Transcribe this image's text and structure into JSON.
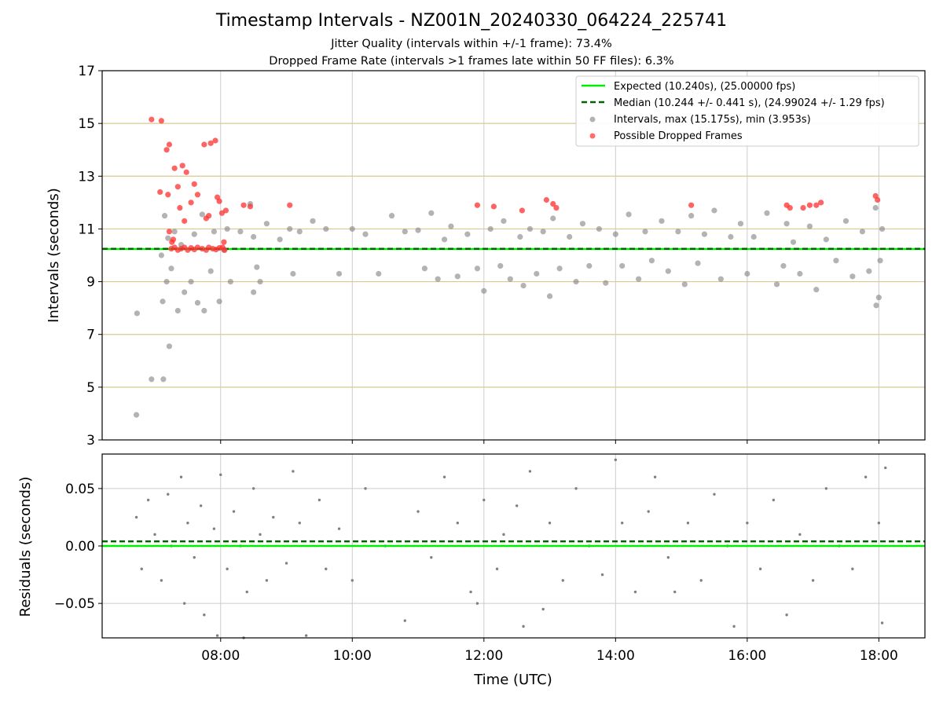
{
  "header": {
    "title": "Timestamp Intervals - NZ001N_20240330_064224_225741",
    "subtitle_1": "Jitter Quality (intervals within +/-1 frame): 73.4%",
    "subtitle_2": "Dropped Frame Rate (intervals >1 frames late within 50 FF files): 6.3%"
  },
  "chart_data": [
    {
      "type": "scatter",
      "name": "intervals",
      "ylabel": "Intervals (seconds)",
      "ylim": [
        3,
        17
      ],
      "yticks": [
        3,
        5,
        7,
        9,
        11,
        13,
        15,
        17
      ],
      "xlim_hours": [
        6.2,
        18.7
      ],
      "xticks": [
        "08:00",
        "10:00",
        "12:00",
        "14:00",
        "16:00",
        "18:00"
      ],
      "grid": "y lines at odd seconds (tan), vertical lines at x ticks (gray)",
      "legend_position": "top-right",
      "expected_line": {
        "y": 10.24,
        "color": "#00ee00",
        "label": "Expected (10.240s), (25.00000 fps)"
      },
      "median_line": {
        "y": 10.244,
        "color": "#006400",
        "style": "dashed",
        "label": "Median (10.244 +/- 0.441 s), (24.99024 +/- 1.29 fps)"
      },
      "series": [
        {
          "name": "Intervals, max (15.175s), min (3.953s)",
          "color": "#808080",
          "points": [
            [
              6.72,
              3.95
            ],
            [
              6.73,
              7.8
            ],
            [
              6.95,
              5.3
            ],
            [
              7.13,
              5.3
            ],
            [
              7.22,
              6.55
            ],
            [
              7.12,
              8.25
            ],
            [
              7.18,
              9.0
            ],
            [
              7.25,
              9.5
            ],
            [
              7.35,
              7.9
            ],
            [
              7.45,
              8.6
            ],
            [
              7.55,
              9.0
            ],
            [
              7.65,
              8.2
            ],
            [
              7.75,
              7.9
            ],
            [
              7.85,
              9.4
            ],
            [
              7.98,
              8.25
            ],
            [
              7.1,
              10.0
            ],
            [
              7.15,
              11.5
            ],
            [
              7.2,
              10.65
            ],
            [
              7.3,
              10.9
            ],
            [
              7.4,
              10.4
            ],
            [
              7.6,
              10.8
            ],
            [
              7.72,
              11.55
            ],
            [
              7.9,
              10.9
            ],
            [
              8.05,
              10.2
            ],
            [
              8.1,
              11.0
            ],
            [
              8.15,
              9.0
            ],
            [
              8.3,
              10.9
            ],
            [
              8.45,
              11.95
            ],
            [
              8.5,
              10.7
            ],
            [
              8.55,
              9.55
            ],
            [
              8.5,
              8.6
            ],
            [
              8.6,
              9.0
            ],
            [
              8.7,
              11.2
            ],
            [
              8.9,
              10.6
            ],
            [
              9.05,
              11.0
            ],
            [
              9.1,
              9.3
            ],
            [
              9.2,
              10.9
            ],
            [
              9.4,
              11.3
            ],
            [
              9.6,
              11.0
            ],
            [
              9.8,
              9.3
            ],
            [
              10.0,
              11.0
            ],
            [
              10.2,
              10.8
            ],
            [
              10.4,
              9.3
            ],
            [
              10.6,
              11.5
            ],
            [
              10.8,
              10.9
            ],
            [
              11.0,
              10.95
            ],
            [
              11.1,
              9.5
            ],
            [
              11.2,
              11.6
            ],
            [
              11.3,
              9.1
            ],
            [
              11.4,
              10.6
            ],
            [
              11.5,
              11.1
            ],
            [
              11.6,
              9.2
            ],
            [
              11.75,
              10.8
            ],
            [
              11.9,
              9.5
            ],
            [
              12.0,
              8.65
            ],
            [
              12.1,
              11.0
            ],
            [
              12.25,
              9.6
            ],
            [
              12.3,
              11.3
            ],
            [
              12.4,
              9.1
            ],
            [
              12.55,
              10.7
            ],
            [
              12.6,
              8.85
            ],
            [
              12.7,
              11.0
            ],
            [
              12.8,
              9.3
            ],
            [
              12.9,
              10.9
            ],
            [
              13.0,
              8.45
            ],
            [
              13.05,
              11.4
            ],
            [
              13.15,
              9.5
            ],
            [
              13.3,
              10.7
            ],
            [
              13.4,
              9.0
            ],
            [
              13.5,
              11.2
            ],
            [
              13.6,
              9.6
            ],
            [
              13.75,
              11.0
            ],
            [
              13.85,
              8.95
            ],
            [
              14.0,
              10.8
            ],
            [
              14.1,
              9.6
            ],
            [
              14.2,
              11.55
            ],
            [
              14.35,
              9.1
            ],
            [
              14.45,
              10.9
            ],
            [
              14.55,
              9.8
            ],
            [
              14.7,
              11.3
            ],
            [
              14.8,
              9.4
            ],
            [
              14.95,
              10.9
            ],
            [
              15.05,
              8.9
            ],
            [
              15.15,
              11.5
            ],
            [
              15.25,
              9.7
            ],
            [
              15.35,
              10.8
            ],
            [
              15.5,
              11.7
            ],
            [
              15.6,
              9.1
            ],
            [
              15.75,
              10.7
            ],
            [
              15.9,
              11.2
            ],
            [
              16.0,
              9.3
            ],
            [
              16.1,
              10.7
            ],
            [
              16.3,
              11.6
            ],
            [
              16.45,
              8.9
            ],
            [
              16.55,
              9.6
            ],
            [
              16.6,
              11.2
            ],
            [
              16.7,
              10.5
            ],
            [
              16.8,
              9.3
            ],
            [
              16.95,
              11.1
            ],
            [
              17.05,
              8.7
            ],
            [
              17.2,
              10.6
            ],
            [
              17.35,
              9.8
            ],
            [
              17.5,
              11.3
            ],
            [
              17.6,
              9.2
            ],
            [
              17.75,
              10.9
            ],
            [
              17.85,
              9.4
            ],
            [
              17.95,
              11.8
            ],
            [
              17.96,
              8.1
            ],
            [
              18.0,
              8.4
            ],
            [
              18.02,
              9.8
            ],
            [
              18.05,
              11.0
            ]
          ]
        },
        {
          "name": "Possible Dropped Frames",
          "color": "#ff3030",
          "points": [
            [
              6.95,
              15.15
            ],
            [
              7.1,
              15.1
            ],
            [
              7.08,
              12.4
            ],
            [
              7.18,
              14.0
            ],
            [
              7.22,
              14.2
            ],
            [
              7.2,
              12.3
            ],
            [
              7.3,
              13.3
            ],
            [
              7.35,
              12.6
            ],
            [
              7.38,
              11.8
            ],
            [
              7.42,
              13.4
            ],
            [
              7.45,
              11.3
            ],
            [
              7.48,
              13.15
            ],
            [
              7.55,
              12.0
            ],
            [
              7.6,
              12.7
            ],
            [
              7.65,
              12.3
            ],
            [
              7.75,
              14.2
            ],
            [
              7.78,
              11.4
            ],
            [
              7.82,
              11.5
            ],
            [
              7.85,
              14.25
            ],
            [
              7.92,
              14.35
            ],
            [
              7.95,
              12.2
            ],
            [
              7.98,
              12.05
            ],
            [
              8.02,
              11.6
            ],
            [
              8.08,
              11.7
            ],
            [
              8.05,
              10.5
            ],
            [
              8.35,
              11.9
            ],
            [
              8.45,
              11.85
            ],
            [
              9.05,
              11.9
            ],
            [
              7.25,
              10.25
            ],
            [
              7.3,
              10.3
            ],
            [
              7.35,
              10.2
            ],
            [
              7.4,
              10.25
            ],
            [
              7.45,
              10.3
            ],
            [
              7.5,
              10.2
            ],
            [
              7.55,
              10.28
            ],
            [
              7.6,
              10.22
            ],
            [
              7.65,
              10.3
            ],
            [
              7.72,
              10.25
            ],
            [
              7.78,
              10.2
            ],
            [
              7.82,
              10.3
            ],
            [
              7.88,
              10.25
            ],
            [
              7.93,
              10.22
            ],
            [
              7.98,
              10.28
            ],
            [
              8.03,
              10.3
            ],
            [
              8.06,
              10.2
            ],
            [
              7.26,
              10.5
            ],
            [
              7.22,
              10.9
            ],
            [
              7.28,
              10.6
            ],
            [
              11.9,
              11.9
            ],
            [
              12.15,
              11.85
            ],
            [
              12.58,
              11.7
            ],
            [
              12.95,
              12.1
            ],
            [
              13.05,
              11.95
            ],
            [
              13.1,
              11.8
            ],
            [
              15.15,
              11.9
            ],
            [
              16.6,
              11.9
            ],
            [
              16.65,
              11.8
            ],
            [
              16.85,
              11.8
            ],
            [
              16.95,
              11.9
            ],
            [
              17.05,
              11.9
            ],
            [
              17.12,
              12.0
            ],
            [
              17.95,
              12.25
            ],
            [
              17.98,
              12.1
            ]
          ]
        }
      ]
    },
    {
      "type": "scatter",
      "name": "residuals",
      "xlabel": "Time (UTC)",
      "ylabel": "Residuals (seconds)",
      "ylim": [
        -0.08,
        0.08
      ],
      "yticks": [
        "−0.05",
        "0.00",
        "0.05"
      ],
      "ytick_values": [
        -0.05,
        0.0,
        0.05
      ],
      "xlim_hours": [
        6.2,
        18.7
      ],
      "xticks": [
        "08:00",
        "10:00",
        "12:00",
        "14:00",
        "16:00",
        "18:00"
      ],
      "expected_line": {
        "y": 0.0,
        "color": "#00ee00"
      },
      "median_line": {
        "y": 0.004,
        "color": "#006400",
        "style": "dashed"
      },
      "series": [
        {
          "name": "residuals",
          "color": "#808080",
          "points": [
            [
              6.72,
              0.025
            ],
            [
              6.8,
              -0.02
            ],
            [
              6.9,
              0.04
            ],
            [
              7.0,
              0.01
            ],
            [
              7.1,
              -0.03
            ],
            [
              7.2,
              0.045
            ],
            [
              7.25,
              0.0
            ],
            [
              7.4,
              0.06
            ],
            [
              7.45,
              -0.05
            ],
            [
              7.5,
              0.02
            ],
            [
              7.6,
              -0.01
            ],
            [
              7.7,
              0.035
            ],
            [
              7.75,
              -0.06
            ],
            [
              7.9,
              0.015
            ],
            [
              7.95,
              -0.078
            ],
            [
              8.0,
              0.062
            ],
            [
              8.1,
              -0.02
            ],
            [
              8.2,
              0.03
            ],
            [
              8.3,
              0.0
            ],
            [
              8.35,
              -0.08
            ],
            [
              8.4,
              -0.04
            ],
            [
              8.5,
              0.05
            ],
            [
              8.6,
              0.01
            ],
            [
              8.7,
              -0.03
            ],
            [
              8.8,
              0.025
            ],
            [
              9.0,
              -0.015
            ],
            [
              9.1,
              0.065
            ],
            [
              9.2,
              0.02
            ],
            [
              9.3,
              -0.078
            ],
            [
              9.5,
              0.04
            ],
            [
              9.6,
              -0.02
            ],
            [
              9.8,
              0.015
            ],
            [
              10.0,
              -0.03
            ],
            [
              10.2,
              0.05
            ],
            [
              10.5,
              0.0
            ],
            [
              10.8,
              -0.065
            ],
            [
              11.0,
              0.03
            ],
            [
              11.2,
              -0.01
            ],
            [
              11.4,
              0.06
            ],
            [
              11.6,
              0.02
            ],
            [
              11.8,
              -0.04
            ],
            [
              11.9,
              -0.05
            ],
            [
              12.0,
              0.04
            ],
            [
              12.2,
              -0.02
            ],
            [
              12.3,
              0.01
            ],
            [
              12.5,
              0.035
            ],
            [
              12.6,
              -0.07
            ],
            [
              12.7,
              0.065
            ],
            [
              12.9,
              -0.055
            ],
            [
              13.0,
              0.02
            ],
            [
              13.2,
              -0.03
            ],
            [
              13.4,
              0.05
            ],
            [
              13.6,
              0.0
            ],
            [
              13.8,
              -0.025
            ],
            [
              14.0,
              0.075
            ],
            [
              14.1,
              0.02
            ],
            [
              14.3,
              -0.04
            ],
            [
              14.5,
              0.03
            ],
            [
              14.6,
              0.06
            ],
            [
              14.8,
              -0.01
            ],
            [
              14.9,
              -0.04
            ],
            [
              15.1,
              0.02
            ],
            [
              15.3,
              -0.03
            ],
            [
              15.5,
              0.045
            ],
            [
              15.7,
              0.0
            ],
            [
              15.8,
              -0.07
            ],
            [
              16.0,
              0.02
            ],
            [
              16.2,
              -0.02
            ],
            [
              16.4,
              0.04
            ],
            [
              16.6,
              -0.06
            ],
            [
              16.8,
              0.01
            ],
            [
              17.0,
              -0.03
            ],
            [
              17.2,
              0.05
            ],
            [
              17.4,
              0.0
            ],
            [
              17.6,
              -0.02
            ],
            [
              17.8,
              0.06
            ],
            [
              18.0,
              0.02
            ],
            [
              18.05,
              -0.067
            ],
            [
              18.1,
              0.068
            ]
          ]
        }
      ]
    }
  ]
}
